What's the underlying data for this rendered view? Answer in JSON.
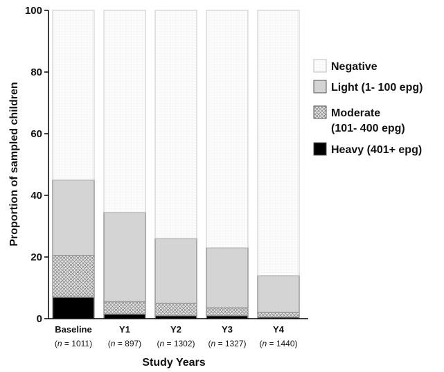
{
  "chart_data": {
    "type": "stacked-bar",
    "title": "",
    "xlabel": "Study Years",
    "ylabel": "Proportion of sampled children",
    "ylim": [
      0,
      100
    ],
    "yticks": [
      "0",
      "20",
      "40",
      "60",
      "80",
      "100"
    ],
    "categories": [
      {
        "label": "Baseline",
        "n_prefix": "(",
        "n_var": "n",
        "n_value": " = 1011)"
      },
      {
        "label": "Y1",
        "n_prefix": "(",
        "n_var": "n",
        "n_value": " = 897)"
      },
      {
        "label": "Y2",
        "n_prefix": "(",
        "n_var": "n",
        "n_value": " = 1302)"
      },
      {
        "label": "Y3",
        "n_prefix": "(",
        "n_var": "n",
        "n_value": " = 1327)"
      },
      {
        "label": "Y4",
        "n_prefix": "(",
        "n_var": "n",
        "n_value": " = 1440)"
      }
    ],
    "series": [
      {
        "name": "Heavy (401+ epg)",
        "fill": "#000000",
        "values": [
          7,
          1.5,
          1,
          1,
          0.5
        ]
      },
      {
        "name": "Moderate (101- 400 epg)",
        "fill": "pattern-check",
        "values": [
          13.5,
          4,
          4,
          2.5,
          1.5
        ]
      },
      {
        "name": "Light (1- 100 epg)",
        "fill": "#d4d4d4",
        "values": [
          24.5,
          29,
          21,
          19.5,
          12
        ]
      },
      {
        "name": "Negative",
        "fill": "pattern-dots",
        "values": [
          55,
          65.5,
          74,
          77,
          86
        ]
      }
    ],
    "legend": {
      "placement": "right",
      "entries": [
        {
          "lines": [
            "Negative"
          ],
          "fill": "pattern-dots"
        },
        {
          "lines": [
            "Light (1- 100 epg)"
          ],
          "fill": "#d4d4d4"
        },
        {
          "lines": [
            "Moderate",
            "(101- 400 epg)"
          ],
          "fill": "pattern-check"
        },
        {
          "lines": [
            "Heavy (401+ epg)"
          ],
          "fill": "#000000"
        }
      ]
    },
    "colors": {
      "axis": "#000000",
      "bar_border": "#9a9a9a",
      "negative_border": "#c8c8c8"
    }
  }
}
